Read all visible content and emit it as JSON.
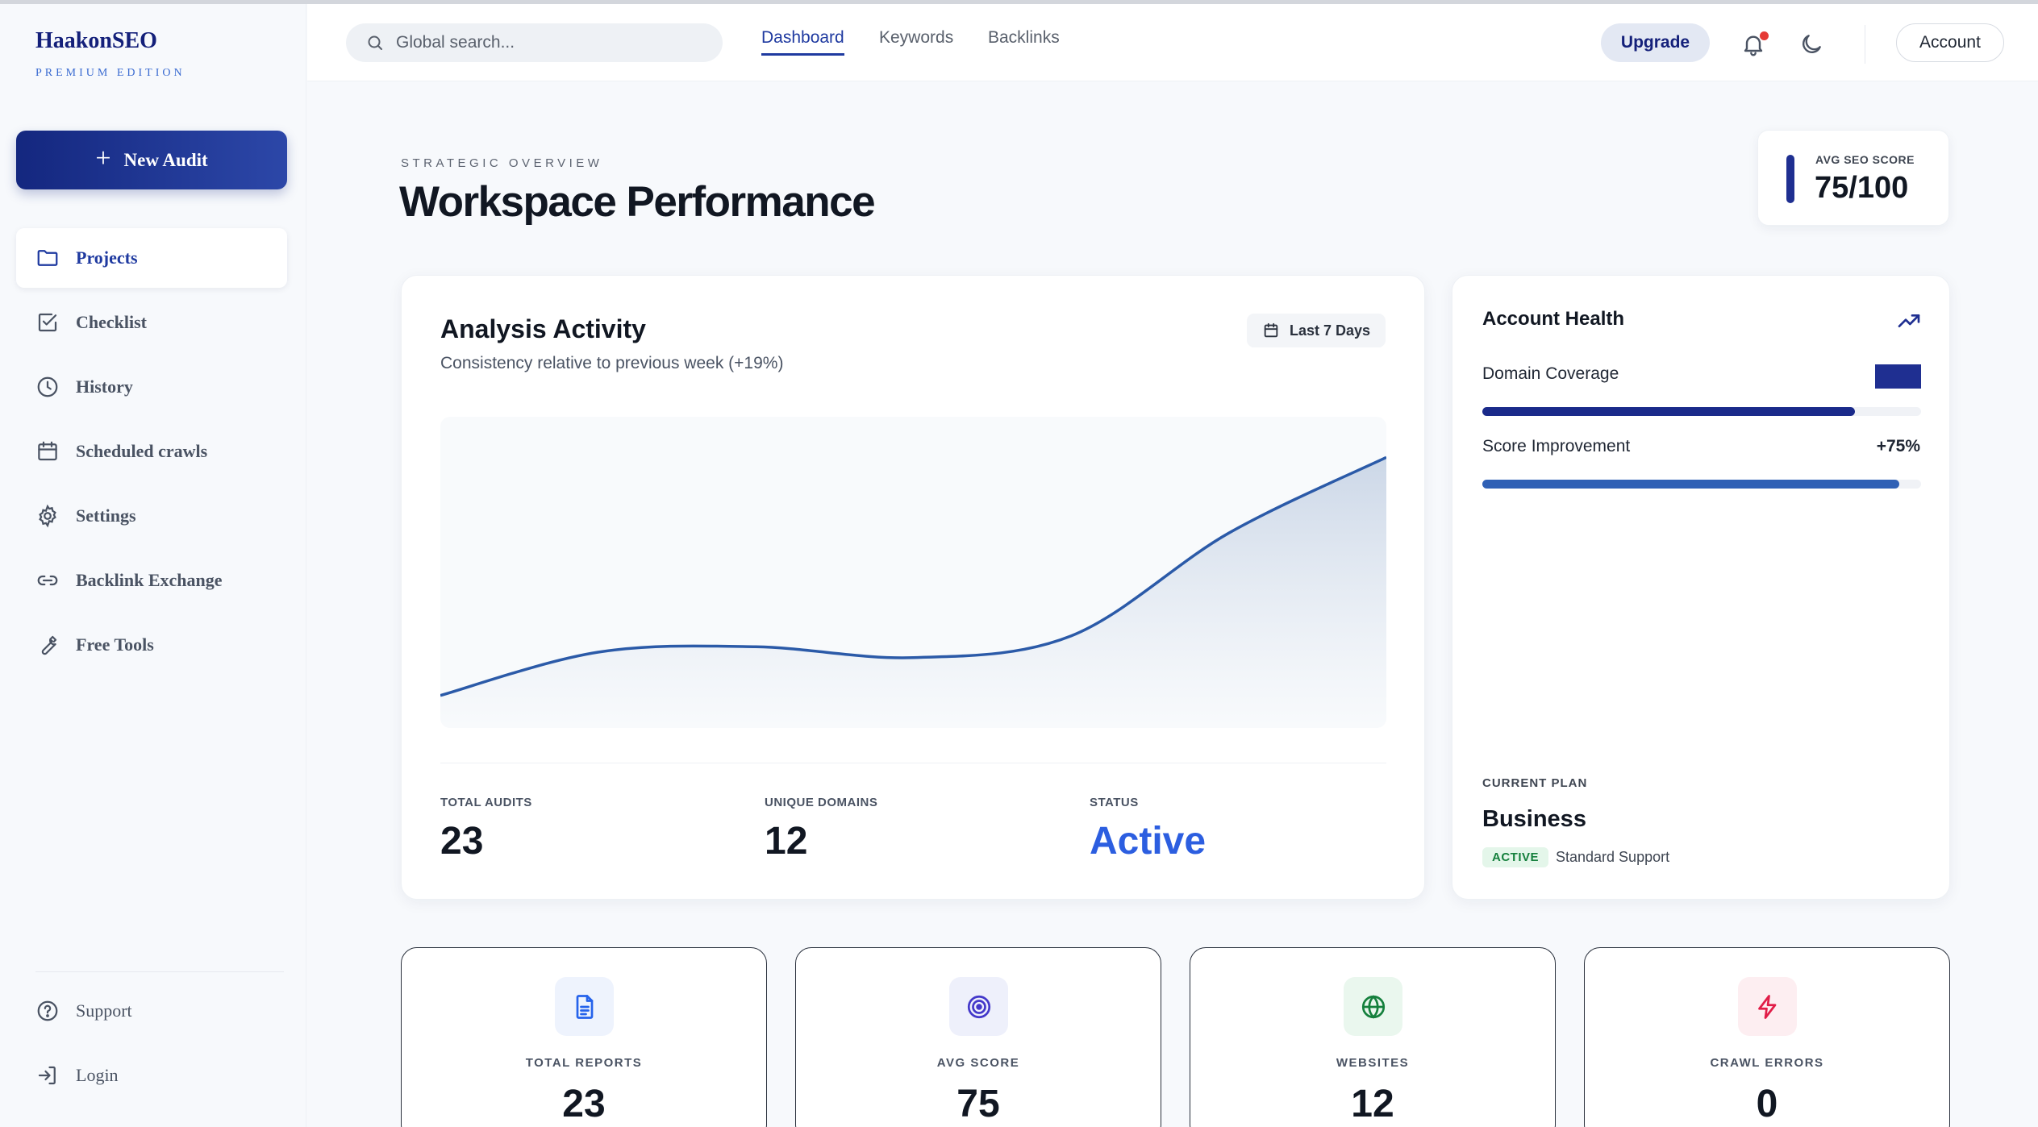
{
  "brand": {
    "name": "HaakonSEO",
    "edition": "PREMIUM EDITION"
  },
  "sidebar": {
    "new_audit": "New Audit",
    "items": [
      {
        "label": "Projects",
        "icon": "folder-icon",
        "active": true
      },
      {
        "label": "Checklist",
        "icon": "checkbox-icon"
      },
      {
        "label": "History",
        "icon": "clock-icon"
      },
      {
        "label": "Scheduled crawls",
        "icon": "calendar-icon"
      },
      {
        "label": "Settings",
        "icon": "gear-icon"
      },
      {
        "label": "Backlink Exchange",
        "icon": "link-icon"
      },
      {
        "label": "Free Tools",
        "icon": "wrench-icon"
      }
    ],
    "footer": [
      {
        "label": "Support",
        "icon": "help-circle-icon"
      },
      {
        "label": "Login",
        "icon": "login-icon"
      }
    ]
  },
  "topbar": {
    "search_placeholder": "Global search...",
    "tabs": [
      {
        "label": "Dashboard",
        "active": true
      },
      {
        "label": "Keywords"
      },
      {
        "label": "Backlinks"
      }
    ],
    "upgrade": "Upgrade",
    "account": "Account",
    "icons": [
      "bell-icon",
      "moon-icon"
    ]
  },
  "header": {
    "overline": "STRATEGIC OVERVIEW",
    "title": "Workspace Performance",
    "avg_score_label": "AVG SEO SCORE",
    "avg_score_value": "75/100"
  },
  "activity": {
    "title": "Analysis Activity",
    "subtitle": "Consistency relative to previous week (+19%)",
    "range": "Last 7 Days",
    "stats": [
      {
        "label": "TOTAL AUDITS",
        "value": "23"
      },
      {
        "label": "UNIQUE DOMAINS",
        "value": "12"
      },
      {
        "label": "STATUS",
        "value": "Active"
      }
    ]
  },
  "chart_data": {
    "type": "area",
    "x": [
      1,
      2,
      3,
      4,
      5,
      6,
      7
    ],
    "values": [
      12,
      28,
      30,
      26,
      34,
      72,
      100
    ],
    "ylim": [
      0,
      115
    ],
    "grid": false,
    "legend": "none",
    "color": "#2b5aa8"
  },
  "health": {
    "title": "Account Health",
    "rows": [
      {
        "label": "Domain Coverage",
        "value": "",
        "fill": 0.85,
        "color": "#1a2a8a"
      },
      {
        "label": "Score Improvement",
        "value": "+75%",
        "fill": 0.95,
        "color": "#2f60b5"
      }
    ],
    "plan_label": "CURRENT PLAN",
    "plan_name": "Business",
    "plan_status": "ACTIVE",
    "plan_support": "Standard Support"
  },
  "kpis": [
    {
      "label": "TOTAL REPORTS",
      "value": "23",
      "icon": "document-icon",
      "color": "#2563eb",
      "bg": "#eef3fd"
    },
    {
      "label": "AVG SCORE",
      "value": "75",
      "icon": "target-icon",
      "color": "#4338ca",
      "bg": "#eef0fb"
    },
    {
      "label": "WEBSITES",
      "value": "12",
      "icon": "globe-icon",
      "color": "#15803d",
      "bg": "#eaf7ee"
    },
    {
      "label": "CRAWL ERRORS",
      "value": "0",
      "icon": "lightning-icon",
      "color": "#e11d48",
      "bg": "#fdeef1"
    }
  ]
}
